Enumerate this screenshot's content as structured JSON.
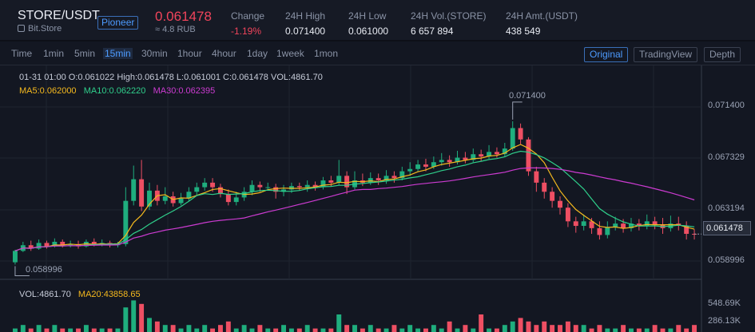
{
  "header": {
    "pair": "STORE/USDT",
    "exchange": "Bit.Store",
    "badge": "Pioneer",
    "price": "0.061478",
    "approx": "≈ 4.8 RUB",
    "stats": [
      {
        "label": "Change",
        "value": "-1.19%",
        "negative": true
      },
      {
        "label": "24H High",
        "value": "0.071400"
      },
      {
        "label": "24H Low",
        "value": "0.061000"
      },
      {
        "label": "24H Vol.(STORE)",
        "value": "6 657 894"
      },
      {
        "label": "24H Amt.(USDT)",
        "value": "438 549"
      }
    ]
  },
  "toolbar": {
    "timeframes": [
      "Time",
      "1min",
      "5min",
      "15min",
      "30min",
      "1hour",
      "4hour",
      "1day",
      "1week",
      "1mon"
    ],
    "active_timeframe": "15min",
    "views": [
      "Original",
      "TradingView",
      "Depth"
    ],
    "active_view": "Original"
  },
  "legend": {
    "ohlc": "01-31 01:00   O:0.061022  High:0.061478  L:0.061001  C:0.061478  VOL:4861.70",
    "ma5": "MA5:0.062000",
    "ma10": "MA10:0.062220",
    "ma30": "MA30:0.062395",
    "vol": "VOL:4861.70",
    "ma20": "MA20:43858.65"
  },
  "price_axis": [
    "0.071400",
    "0.067329",
    "0.063194",
    "0.058996"
  ],
  "current_price_tag": "0.061478",
  "volume_axis": [
    "548.69K",
    "286.13K"
  ],
  "annotations": {
    "high": "0.071400",
    "low": "0.058996"
  },
  "colors": {
    "up": "#1fae7e",
    "down": "#ee4f63",
    "ma5": "#f5b91e",
    "ma10": "#2fcf8b",
    "ma30": "#cc3bd1"
  },
  "chart_data": {
    "type": "candlestick",
    "price_range": [
      0.0575,
      0.0735
    ],
    "candles": [
      [
        0.059,
        0.06,
        0.0588,
        0.0601
      ],
      [
        0.06,
        0.0605,
        0.0599,
        0.0608
      ],
      [
        0.0605,
        0.0602,
        0.06,
        0.0609
      ],
      [
        0.0602,
        0.0607,
        0.0601,
        0.061
      ],
      [
        0.0607,
        0.0604,
        0.0602,
        0.0609
      ],
      [
        0.0604,
        0.0608,
        0.0603,
        0.0611
      ],
      [
        0.0608,
        0.0605,
        0.0603,
        0.061
      ],
      [
        0.0605,
        0.0606,
        0.0603,
        0.0609
      ],
      [
        0.0606,
        0.0604,
        0.0602,
        0.0609
      ],
      [
        0.0604,
        0.0608,
        0.0603,
        0.061
      ],
      [
        0.0608,
        0.0606,
        0.0604,
        0.0611
      ],
      [
        0.0606,
        0.0607,
        0.0604,
        0.061
      ],
      [
        0.0607,
        0.0605,
        0.0603,
        0.0609
      ],
      [
        0.0605,
        0.0606,
        0.0603,
        0.0608
      ],
      [
        0.0606,
        0.0644,
        0.0604,
        0.0656
      ],
      [
        0.0644,
        0.0663,
        0.064,
        0.0675
      ],
      [
        0.0663,
        0.0639,
        0.0635,
        0.068
      ],
      [
        0.0639,
        0.0653,
        0.0636,
        0.066
      ],
      [
        0.0653,
        0.0644,
        0.064,
        0.0658
      ],
      [
        0.0644,
        0.0648,
        0.0641,
        0.0656
      ],
      [
        0.0648,
        0.0642,
        0.0639,
        0.0652
      ],
      [
        0.0642,
        0.0646,
        0.064,
        0.0651
      ],
      [
        0.0646,
        0.0652,
        0.0644,
        0.0656
      ],
      [
        0.0652,
        0.0656,
        0.0649,
        0.066
      ],
      [
        0.0656,
        0.066,
        0.0653,
        0.0664
      ],
      [
        0.066,
        0.0656,
        0.0652,
        0.0664
      ],
      [
        0.0656,
        0.065,
        0.0647,
        0.0659
      ],
      [
        0.065,
        0.0643,
        0.064,
        0.0654
      ],
      [
        0.0643,
        0.0647,
        0.064,
        0.0652
      ],
      [
        0.0647,
        0.0652,
        0.0644,
        0.0656
      ],
      [
        0.0652,
        0.0658,
        0.0649,
        0.0662
      ],
      [
        0.0658,
        0.0656,
        0.0652,
        0.0661
      ],
      [
        0.0656,
        0.0656,
        0.0653,
        0.066
      ],
      [
        0.0656,
        0.0652,
        0.0646,
        0.0659
      ],
      [
        0.0652,
        0.0654,
        0.0648,
        0.0658
      ],
      [
        0.0654,
        0.0657,
        0.0651,
        0.066
      ],
      [
        0.0657,
        0.0656,
        0.0653,
        0.066
      ],
      [
        0.0656,
        0.0658,
        0.0652,
        0.0662
      ],
      [
        0.0658,
        0.0656,
        0.0653,
        0.0661
      ],
      [
        0.0656,
        0.0662,
        0.0654,
        0.0665
      ],
      [
        0.0662,
        0.066,
        0.0657,
        0.0666
      ],
      [
        0.066,
        0.0666,
        0.0658,
        0.068
      ],
      [
        0.0666,
        0.0656,
        0.065,
        0.067
      ],
      [
        0.0656,
        0.0662,
        0.0654,
        0.067
      ],
      [
        0.0662,
        0.066,
        0.0657,
        0.0668
      ],
      [
        0.066,
        0.0664,
        0.0658,
        0.0669
      ],
      [
        0.0664,
        0.0662,
        0.0658,
        0.0668
      ],
      [
        0.0662,
        0.0666,
        0.0659,
        0.0671
      ],
      [
        0.0666,
        0.0664,
        0.066,
        0.067
      ],
      [
        0.0664,
        0.067,
        0.0662,
        0.0674
      ],
      [
        0.067,
        0.0672,
        0.0666,
        0.0678
      ],
      [
        0.0672,
        0.0676,
        0.067,
        0.068
      ],
      [
        0.0676,
        0.0674,
        0.067,
        0.0681
      ],
      [
        0.0674,
        0.0678,
        0.0672,
        0.0683
      ],
      [
        0.0678,
        0.068,
        0.0675,
        0.0686
      ],
      [
        0.068,
        0.0678,
        0.0674,
        0.0684
      ],
      [
        0.0678,
        0.0682,
        0.0676,
        0.0688
      ],
      [
        0.0682,
        0.068,
        0.0677,
        0.0687
      ],
      [
        0.068,
        0.0685,
        0.0678,
        0.069
      ],
      [
        0.0685,
        0.0683,
        0.0679,
        0.0689
      ],
      [
        0.0683,
        0.0687,
        0.0681,
        0.0693
      ],
      [
        0.0687,
        0.0685,
        0.0682,
        0.0691
      ],
      [
        0.0685,
        0.069,
        0.0683,
        0.0695
      ],
      [
        0.069,
        0.0708,
        0.0688,
        0.0714
      ],
      [
        0.0708,
        0.0698,
        0.0694,
        0.0712
      ],
      [
        0.0698,
        0.067,
        0.0666,
        0.07
      ],
      [
        0.067,
        0.066,
        0.0652,
        0.0674
      ],
      [
        0.066,
        0.0652,
        0.0646,
        0.0664
      ],
      [
        0.0652,
        0.0644,
        0.0638,
        0.0656
      ],
      [
        0.0644,
        0.0638,
        0.0632,
        0.0648
      ],
      [
        0.0638,
        0.0626,
        0.0621,
        0.0642
      ],
      [
        0.0626,
        0.0622,
        0.0616,
        0.063
      ],
      [
        0.0622,
        0.0626,
        0.0618,
        0.0632
      ],
      [
        0.0626,
        0.062,
        0.0615,
        0.0629
      ],
      [
        0.062,
        0.0614,
        0.061,
        0.0626
      ],
      [
        0.0614,
        0.0621,
        0.0611,
        0.0626
      ],
      [
        0.0621,
        0.0624,
        0.0618,
        0.063
      ],
      [
        0.0624,
        0.062,
        0.0616,
        0.0628
      ],
      [
        0.062,
        0.0624,
        0.0617,
        0.0629
      ],
      [
        0.0624,
        0.0622,
        0.0618,
        0.0628
      ],
      [
        0.0622,
        0.0626,
        0.0619,
        0.0632
      ],
      [
        0.0626,
        0.0623,
        0.0619,
        0.063
      ],
      [
        0.0623,
        0.062,
        0.0615,
        0.0629
      ],
      [
        0.062,
        0.0624,
        0.0617,
        0.0631
      ],
      [
        0.0624,
        0.0622,
        0.0618,
        0.063
      ],
      [
        0.0622,
        0.0615,
        0.061,
        0.0626
      ],
      [
        0.0615,
        0.06148,
        0.061,
        0.0619
      ]
    ],
    "volumes": [
      0.1,
      0.2,
      0.1,
      0.2,
      0.1,
      0.2,
      0.1,
      0.1,
      0.1,
      0.2,
      0.1,
      0.1,
      0.1,
      0.1,
      0.7,
      0.9,
      0.8,
      0.4,
      0.3,
      0.2,
      0.2,
      0.1,
      0.2,
      0.1,
      0.2,
      0.1,
      0.2,
      0.3,
      0.1,
      0.2,
      0.1,
      0.2,
      0.1,
      0.1,
      0.2,
      0.1,
      0.1,
      0.2,
      0.1,
      0.1,
      0.1,
      0.5,
      0.2,
      0.2,
      0.1,
      0.2,
      0.1,
      0.1,
      0.2,
      0.1,
      0.2,
      0.1,
      0.1,
      0.2,
      0.1,
      0.3,
      0.1,
      0.2,
      0.1,
      0.5,
      0.1,
      0.1,
      0.2,
      0.3,
      0.4,
      0.3,
      0.2,
      0.3,
      0.2,
      0.2,
      0.3,
      0.2,
      0.2,
      0.1,
      0.2,
      0.1,
      0.1,
      0.2,
      0.1,
      0.1,
      0.1,
      0.2,
      0.1,
      0.1,
      0.2,
      0.1,
      0.2
    ]
  }
}
